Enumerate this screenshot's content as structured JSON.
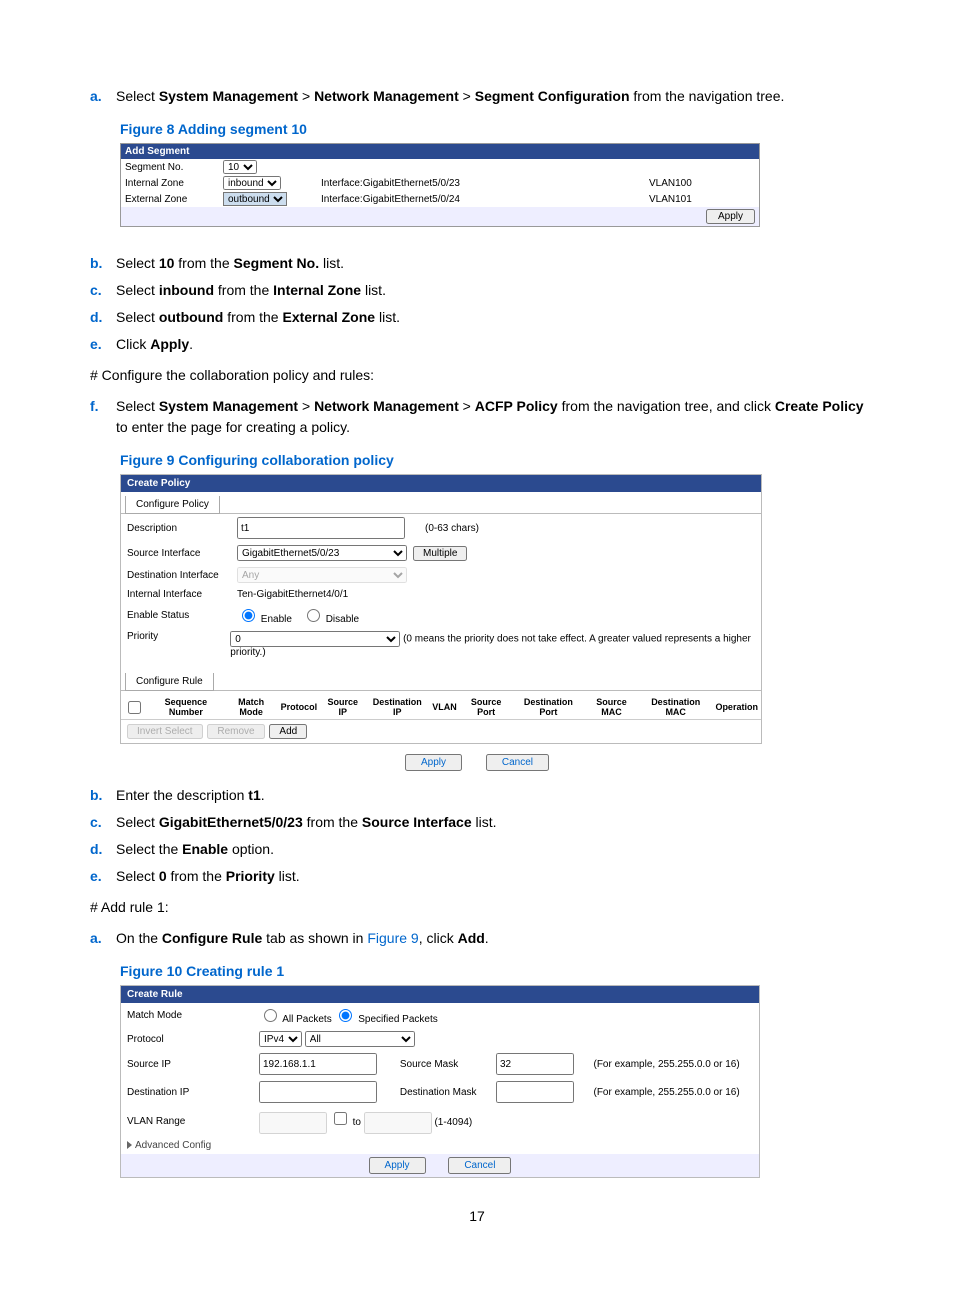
{
  "steps_top": [
    {
      "letter": "a.",
      "html": "Select <b>System Management</b> > <b>Network Management</b> > <b>Segment Configuration</b> from the navigation tree."
    }
  ],
  "fig8": {
    "caption": "Figure 8 Adding segment 10",
    "header": "Add Segment",
    "segment_no_lbl": "Segment No.",
    "segment_no_val": "10",
    "internal_zone_lbl": "Internal Zone",
    "internal_zone_val": "inbound",
    "internal_if": "Interface:GigabitEthernet5/0/23",
    "internal_vlan": "VLAN100",
    "external_zone_lbl": "External Zone",
    "external_zone_val": "outbound",
    "external_if": "Interface:GigabitEthernet5/0/24",
    "external_vlan": "VLAN101",
    "apply": "Apply"
  },
  "steps_mid1": [
    {
      "letter": "b.",
      "html": "Select <b>10</b> from the <b>Segment No.</b> list."
    },
    {
      "letter": "c.",
      "html": "Select <b>inbound</b> from the <b>Internal Zone</b> list."
    },
    {
      "letter": "d.",
      "html": "Select <b>outbound</b> from the <b>External Zone</b> list."
    },
    {
      "letter": "e.",
      "html": "Click <b>Apply</b>."
    }
  ],
  "hash1": "# Configure the collaboration policy and rules:",
  "steps_mid2": [
    {
      "letter": "f.",
      "html": "Select <b>System Management</b> > <b>Network Management</b> > <b>ACFP Policy</b> from the navigation tree, and click <b>Create Policy</b> to enter the page for creating a policy."
    }
  ],
  "fig9": {
    "caption": "Figure 9 Configuring collaboration policy",
    "header": "Create Policy",
    "tab": "Configure Policy",
    "desc_lbl": "Description",
    "desc_val": "t1",
    "desc_hint": "(0-63   chars)",
    "src_if_lbl": "Source Interface",
    "src_if_val": "GigabitEthernet5/0/23",
    "multiple": "Multiple",
    "dst_if_lbl": "Destination Interface",
    "dst_if_val": "Any",
    "int_if_lbl": "Internal Interface",
    "int_if_val": "Ten-GigabitEthernet4/0/1",
    "enable_lbl": "Enable Status",
    "enable": "Enable",
    "disable": "Disable",
    "priority_lbl": "Priority",
    "priority_val": "0",
    "priority_hint": "(0 means the priority does not take effect. A greater valued represents a higher priority.)",
    "rule_tab": "Configure Rule",
    "rule_cols": [
      "",
      "Sequence Number",
      "Match Mode",
      "Protocol",
      "Source IP",
      "Destination IP",
      "VLAN",
      "Source Port",
      "Destination Port",
      "Source MAC",
      "Destination MAC",
      "Operation"
    ],
    "invert": "Invert Select",
    "remove": "Remove",
    "add": "Add",
    "apply": "Apply",
    "cancel": "Cancel"
  },
  "steps_after9": [
    {
      "letter": "b.",
      "html": "Enter the description <b>t1</b>."
    },
    {
      "letter": "c.",
      "html": "Select <b>GigabitEthernet5/0/23</b> from the <b>Source Interface</b> list."
    },
    {
      "letter": "d.",
      "html": "Select the <b>Enable</b> option."
    },
    {
      "letter": "e.",
      "html": "Select <b>0</b> from the <b>Priority</b> list."
    }
  ],
  "hash2": "# Add rule 1:",
  "steps_after_hash2": [
    {
      "letter": "a.",
      "html": "On the <b>Configure Rule</b> tab as shown in <span class='link'>Figure 9</span>, click <b>Add</b>."
    }
  ],
  "fig10": {
    "caption": "Figure 10 Creating rule 1",
    "header": "Create Rule",
    "match_lbl": "Match Mode",
    "all_packets": "All Packets",
    "spec_packets": "Specified Packets",
    "proto_lbl": "Protocol",
    "proto_v": "IPv4",
    "proto_all": "All",
    "srcip_lbl": "Source IP",
    "srcip_val": "192.168.1.1",
    "srcmask_lbl": "Source Mask",
    "srcmask_val": "32",
    "mask_hint": "(For example, 255.255.0.0 or 16)",
    "dstip_lbl": "Destination IP",
    "dstmask_lbl": "Destination Mask",
    "vlan_lbl": "VLAN Range",
    "to": "to",
    "vlan_hint": "(1-4094)",
    "adv": "Advanced Config",
    "apply": "Apply",
    "cancel": "Cancel"
  },
  "page_num": "17"
}
